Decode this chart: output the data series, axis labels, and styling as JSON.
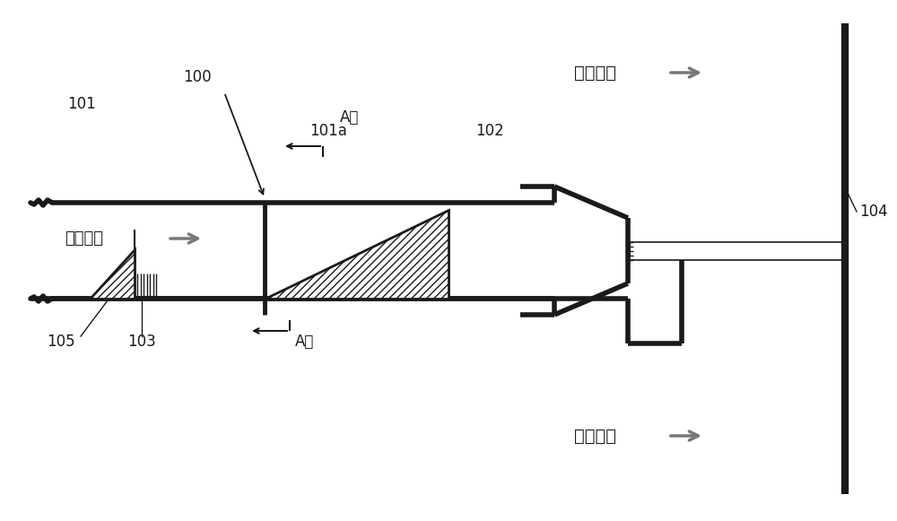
{
  "bg_color": "#ffffff",
  "line_color": "#1a1a1a",
  "dlc": "#1a1a1a",
  "gray": "#777777",
  "label_100": "100",
  "label_101": "101",
  "label_101a": "101a",
  "label_102": "102",
  "label_103": "103",
  "label_104": "104",
  "label_105": "105",
  "text_flow1": "烟气流向",
  "text_flow2": "烟气流向",
  "text_nh3": "含氨气流",
  "text_A_top": "A向",
  "text_A_bot": "A向"
}
